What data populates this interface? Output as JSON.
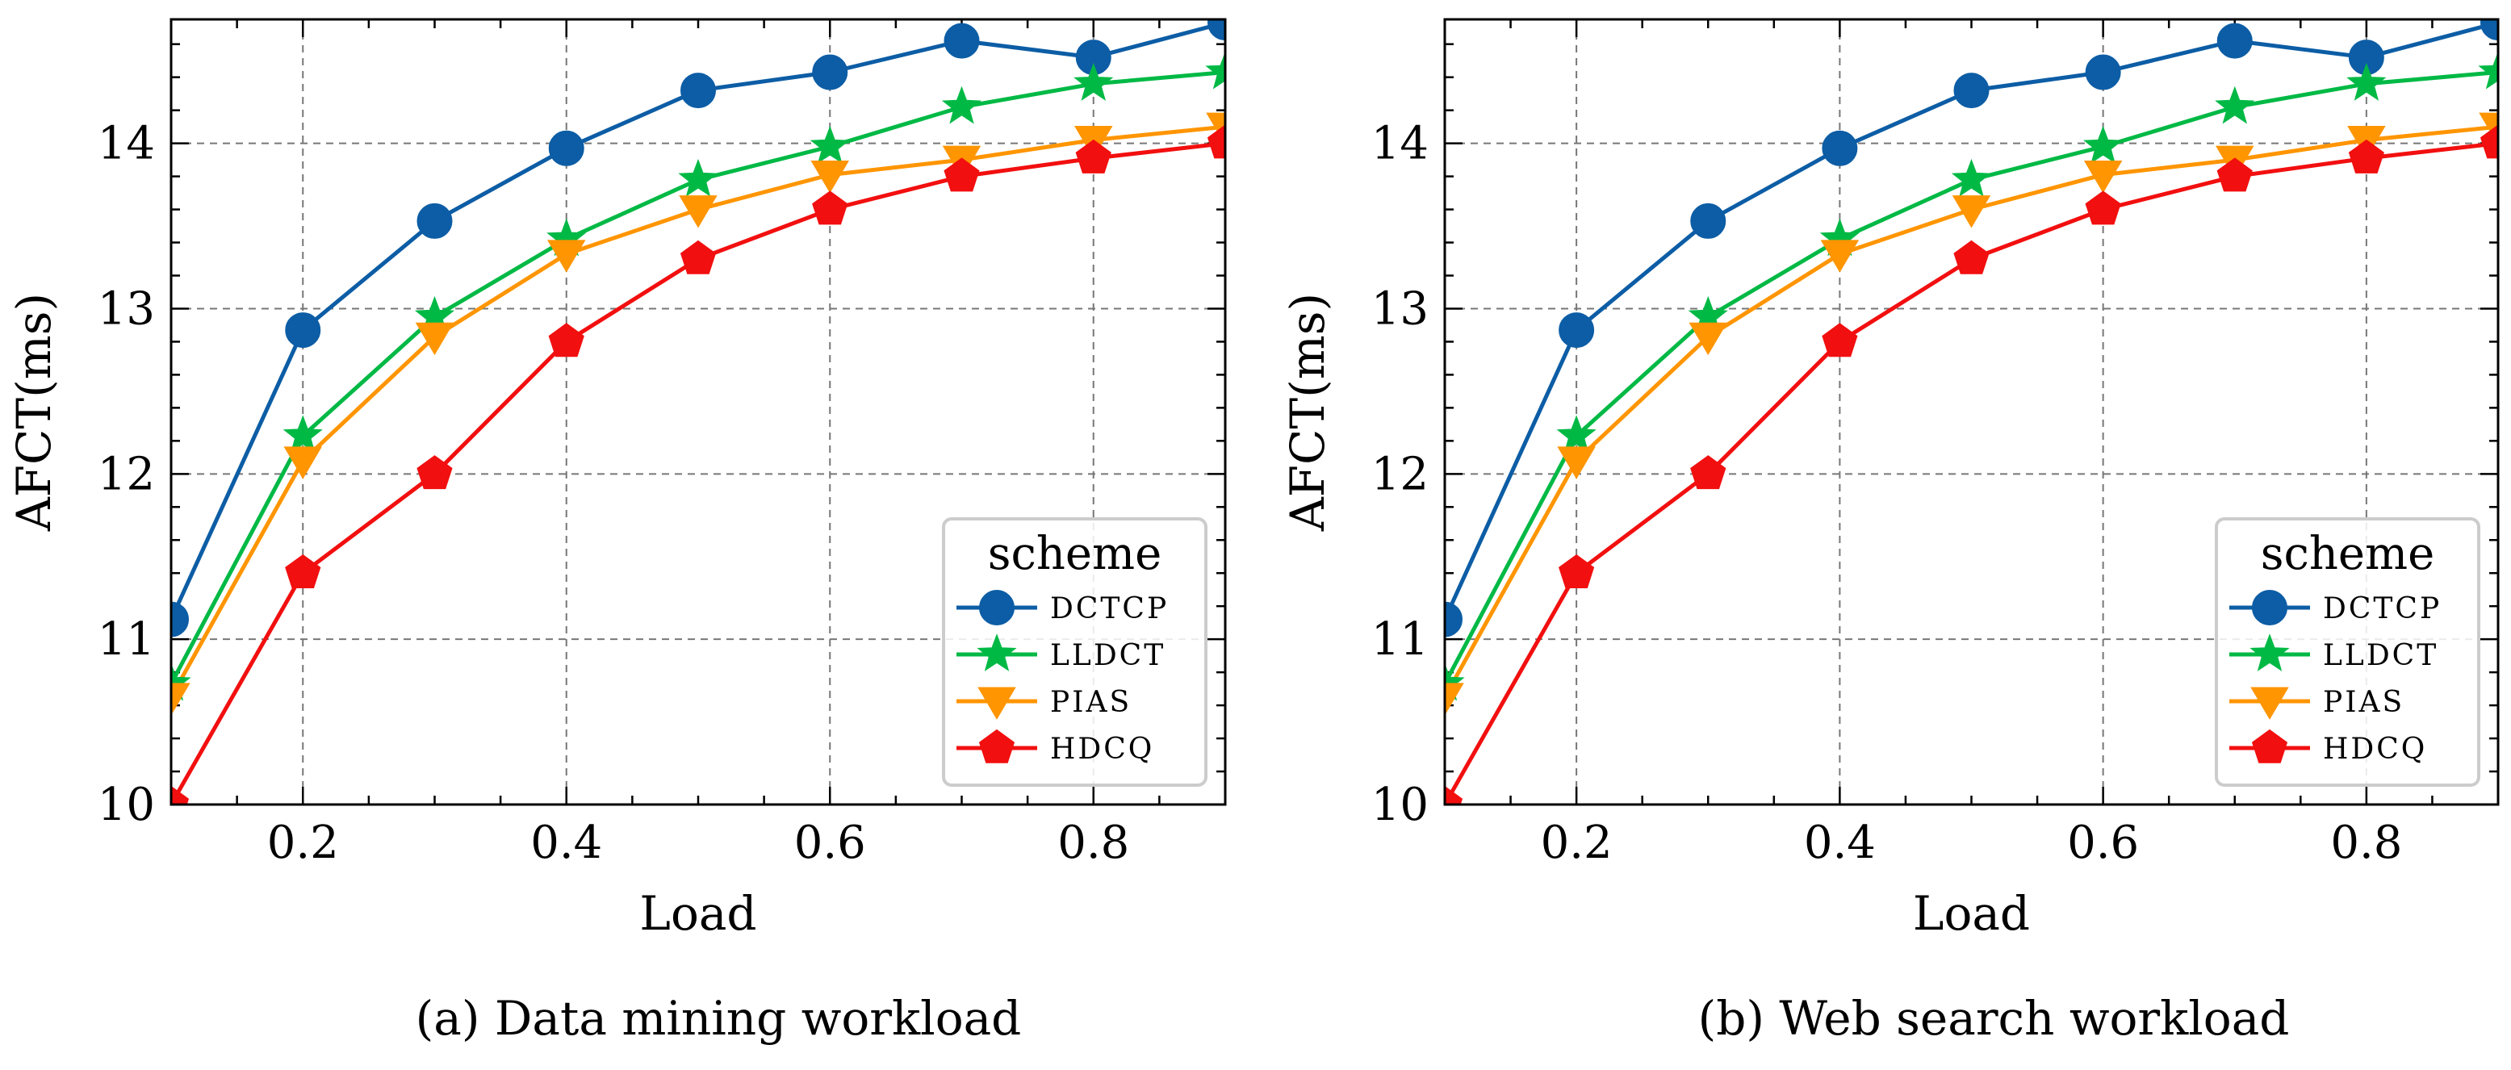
{
  "chart_data": [
    {
      "type": "line",
      "caption": "(a)  Data mining workload",
      "xlabel": "Load",
      "ylabel": "AFCT(ms)",
      "xlim": [
        0.1,
        0.9
      ],
      "ylim": [
        10,
        14.75
      ],
      "xticks": [
        0.2,
        0.4,
        0.6,
        0.8
      ],
      "xtick_labels": [
        "0.2",
        "0.4",
        "0.6",
        "0.8"
      ],
      "yticks": [
        10,
        11,
        12,
        13,
        14
      ],
      "ytick_labels": [
        "10",
        "11",
        "12",
        "13",
        "14"
      ],
      "grid": true,
      "legend_title": "scheme",
      "legend_position": "lower-right",
      "x": [
        0.1,
        0.2,
        0.3,
        0.4,
        0.5,
        0.6,
        0.7,
        0.8,
        0.9
      ],
      "series": [
        {
          "name": "DCTCP",
          "marker": "circle",
          "color": "#0C5DA5",
          "values": [
            11.12,
            12.87,
            13.53,
            13.97,
            14.32,
            14.43,
            14.62,
            14.52,
            14.73
          ]
        },
        {
          "name": "LLDCT",
          "marker": "star",
          "color": "#00B945",
          "values": [
            10.73,
            12.23,
            12.95,
            13.42,
            13.78,
            13.98,
            14.22,
            14.36,
            14.43
          ]
        },
        {
          "name": "PIAS",
          "marker": "triangle",
          "color": "#FF9500",
          "values": [
            10.65,
            12.08,
            12.83,
            13.33,
            13.6,
            13.81,
            13.9,
            14.02,
            14.1
          ]
        },
        {
          "name": "HDCQ",
          "marker": "pentagon",
          "color": "#F20F0F",
          "values": [
            10.0,
            11.4,
            12.0,
            12.8,
            13.3,
            13.6,
            13.8,
            13.91,
            14.0
          ]
        }
      ]
    },
    {
      "type": "line",
      "caption": "(b)  Web search workload",
      "xlabel": "Load",
      "ylabel": "AFCT(ms)",
      "xlim": [
        0.1,
        0.9
      ],
      "ylim": [
        10,
        14.75
      ],
      "xticks": [
        0.2,
        0.4,
        0.6,
        0.8
      ],
      "xtick_labels": [
        "0.2",
        "0.4",
        "0.6",
        "0.8"
      ],
      "yticks": [
        10,
        11,
        12,
        13,
        14
      ],
      "ytick_labels": [
        "10",
        "11",
        "12",
        "13",
        "14"
      ],
      "grid": true,
      "legend_title": "scheme",
      "legend_position": "lower-right",
      "x": [
        0.1,
        0.2,
        0.3,
        0.4,
        0.5,
        0.6,
        0.7,
        0.8,
        0.9
      ],
      "series": [
        {
          "name": "DCTCP",
          "marker": "circle",
          "color": "#0C5DA5",
          "values": [
            11.12,
            12.87,
            13.53,
            13.97,
            14.32,
            14.43,
            14.62,
            14.52,
            14.73
          ]
        },
        {
          "name": "LLDCT",
          "marker": "star",
          "color": "#00B945",
          "values": [
            10.73,
            12.23,
            12.95,
            13.42,
            13.78,
            13.98,
            14.22,
            14.36,
            14.43
          ]
        },
        {
          "name": "PIAS",
          "marker": "triangle",
          "color": "#FF9500",
          "values": [
            10.65,
            12.08,
            12.83,
            13.33,
            13.6,
            13.81,
            13.9,
            14.02,
            14.1
          ]
        },
        {
          "name": "HDCQ",
          "marker": "pentagon",
          "color": "#F20F0F",
          "values": [
            10.0,
            11.4,
            12.0,
            12.8,
            13.3,
            13.6,
            13.8,
            13.91,
            14.0
          ]
        }
      ]
    }
  ]
}
